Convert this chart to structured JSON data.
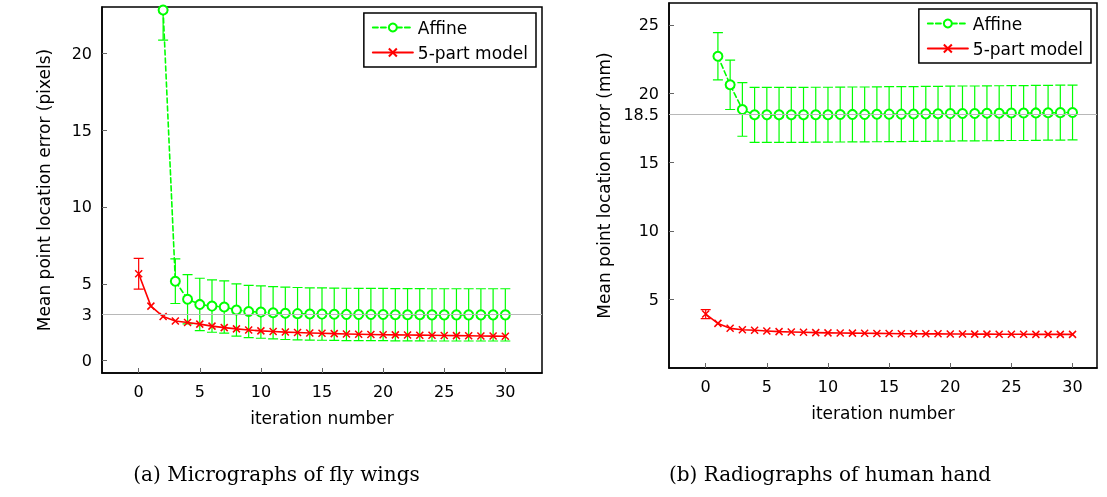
{
  "chart_data": [
    {
      "type": "line",
      "title": "(a) Micrographs of fly wings",
      "xlabel": "iteration number",
      "ylabel": "Mean point location error (pixels)",
      "x": [
        0,
        1,
        2,
        3,
        4,
        5,
        6,
        7,
        8,
        9,
        10,
        11,
        12,
        13,
        14,
        15,
        16,
        17,
        18,
        19,
        20,
        21,
        22,
        23,
        24,
        25,
        26,
        27,
        28,
        29,
        30
      ],
      "xlim": [
        -3,
        33
      ],
      "xticks": [
        0,
        5,
        10,
        15,
        20,
        25,
        30
      ],
      "ylim": [
        -0.8,
        23
      ],
      "yticks": [
        0,
        3,
        5,
        10,
        15,
        20
      ],
      "grid": false,
      "legend": "top right",
      "ref_lines": [
        {
          "axis": "y",
          "value": 3,
          "color": "#b8b8b8"
        }
      ],
      "series": [
        {
          "name": "Affine",
          "color": "#00ff00",
          "marker": "circle",
          "line_style": "dashed",
          "values": [
            null,
            null,
            22.8,
            5.17,
            4.0,
            3.66,
            3.55,
            3.49,
            3.3,
            3.2,
            3.16,
            3.12,
            3.08,
            3.06,
            3.04,
            3.03,
            3.02,
            3.01,
            3.0,
            3.0,
            3.0,
            2.99,
            2.99,
            2.99,
            2.98,
            2.98,
            2.98,
            2.98,
            2.98,
            2.98,
            2.98
          ],
          "errors": [
            null,
            null,
            [
              20.85,
              22.8
            ],
            1.45,
            1.6,
            1.7,
            1.7,
            1.7,
            1.7,
            1.7,
            1.7,
            1.7,
            1.7,
            1.7,
            1.7,
            1.7,
            1.7,
            1.7,
            1.7,
            1.7,
            1.7,
            1.7,
            1.7,
            1.7,
            1.7,
            1.7,
            1.7,
            1.7,
            1.7,
            1.7,
            1.7
          ]
        },
        {
          "name": "5-part model",
          "color": "#ff0000",
          "marker": "cross",
          "line_style": "solid",
          "values": [
            5.66,
            3.55,
            2.87,
            2.58,
            2.48,
            2.38,
            2.25,
            2.15,
            2.07,
            2.0,
            1.94,
            1.9,
            1.86,
            1.83,
            1.8,
            1.78,
            1.76,
            1.74,
            1.72,
            1.7,
            1.69,
            1.68,
            1.67,
            1.66,
            1.65,
            1.64,
            1.63,
            1.62,
            1.61,
            1.6,
            1.59
          ],
          "errors": [
            1.0,
            null,
            null,
            null,
            null,
            null,
            null,
            null,
            null,
            null,
            null,
            null,
            null,
            null,
            null,
            null,
            null,
            null,
            null,
            null,
            null,
            null,
            null,
            null,
            null,
            null,
            null,
            null,
            null,
            null,
            null
          ]
        }
      ]
    },
    {
      "type": "line",
      "title": "(b) Radiographs of human hand",
      "xlabel": "iteration number",
      "ylabel": "Mean point location error (mm)",
      "x": [
        0,
        1,
        2,
        3,
        4,
        5,
        6,
        7,
        8,
        9,
        10,
        11,
        12,
        13,
        14,
        15,
        16,
        17,
        18,
        19,
        20,
        21,
        22,
        23,
        24,
        25,
        26,
        27,
        28,
        29,
        30
      ],
      "xlim": [
        -3,
        32
      ],
      "xticks": [
        0,
        5,
        10,
        15,
        20,
        25,
        30
      ],
      "ylim": [
        0,
        26.6
      ],
      "yticks": [
        5,
        10,
        15,
        18.5,
        20,
        25
      ],
      "grid": false,
      "legend": "top right",
      "ref_lines": [
        {
          "axis": "y",
          "value": 18.5,
          "color": "#b8b8b8"
        }
      ],
      "series": [
        {
          "name": "Affine",
          "color": "#00ff00",
          "marker": "circle",
          "line_style": "dashed",
          "values": [
            null,
            22.72,
            20.64,
            18.84,
            18.45,
            18.45,
            18.45,
            18.45,
            18.45,
            18.46,
            18.46,
            18.47,
            18.48,
            18.48,
            18.49,
            18.5,
            18.5,
            18.51,
            18.52,
            18.53,
            18.54,
            18.55,
            18.55,
            18.56,
            18.57,
            18.58,
            18.58,
            18.59,
            18.6,
            18.61,
            18.62
          ],
          "errors": [
            null,
            1.72,
            1.8,
            1.95,
            2.0,
            2.0,
            2.0,
            2.0,
            2.0,
            2.0,
            2.0,
            2.0,
            2.0,
            2.0,
            2.0,
            2.0,
            2.0,
            2.0,
            2.0,
            2.0,
            2.0,
            2.0,
            2.0,
            2.0,
            2.0,
            2.0,
            2.0,
            2.0,
            2.0,
            2.0,
            2.0
          ]
        },
        {
          "name": "5-part model",
          "color": "#ff0000",
          "marker": "cross",
          "line_style": "solid",
          "values": [
            3.93,
            3.25,
            2.89,
            2.79,
            2.75,
            2.7,
            2.65,
            2.62,
            2.6,
            2.58,
            2.56,
            2.55,
            2.54,
            2.53,
            2.52,
            2.51,
            2.5,
            2.5,
            2.49,
            2.49,
            2.48,
            2.48,
            2.47,
            2.47,
            2.46,
            2.46,
            2.46,
            2.45,
            2.45,
            2.45,
            2.45
          ],
          "errors": [
            0.33,
            null,
            null,
            null,
            null,
            null,
            null,
            null,
            null,
            null,
            null,
            null,
            null,
            null,
            null,
            null,
            null,
            null,
            null,
            null,
            null,
            null,
            null,
            null,
            null,
            null,
            null,
            null,
            null,
            null,
            null
          ]
        }
      ]
    }
  ]
}
